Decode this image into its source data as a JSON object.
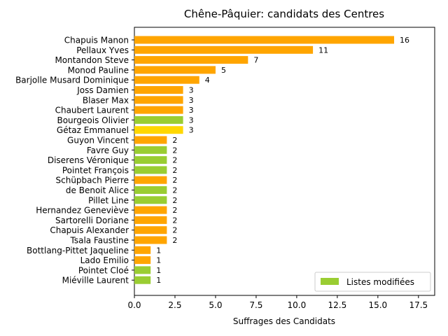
{
  "chart_data": {
    "type": "bar",
    "orientation": "horizontal",
    "title": "Chêne-Pâquier: candidats des Centres",
    "xlabel": "Suffrages des Candidats",
    "ylabel": "",
    "xlim": [
      0,
      18.5
    ],
    "xticks": [
      "0.0",
      "2.5",
      "5.0",
      "7.5",
      "10.0",
      "12.5",
      "15.0",
      "17.5"
    ],
    "grid": false,
    "legend": {
      "position": "bottom-right",
      "entries": [
        {
          "label": "Listes modifiées",
          "color": "#9acd32"
        }
      ]
    },
    "colors": {
      "orange": "#ffa500",
      "green": "#9acd32",
      "gold": "#ffd700"
    },
    "categories": [
      "Chapuis Manon",
      "Pellaux Yves",
      "Montandon Steve",
      "Monod Pauline",
      "Barjolle Musard Dominique",
      "Joss Damien",
      "Blaser Max",
      "Chaubert Laurent",
      "Bourgeois Olivier",
      "Gétaz Emmanuel",
      "Guyon Vincent",
      "Favre Guy",
      "Diserens Véronique",
      "Pointet François",
      "Schüpbach Pierre",
      "de Benoit Alice",
      "Pillet Line",
      "Hernandez Geneviève",
      "Sartorelli Doriane",
      "Chapuis Alexander",
      "Tsala Faustine",
      "Bottlang-Pittet Jaqueline",
      "Lado Emilio",
      "Pointet Cloé",
      "Miéville Laurent"
    ],
    "values": [
      16,
      11,
      7,
      5,
      4,
      3,
      3,
      3,
      3,
      3,
      2,
      2,
      2,
      2,
      2,
      2,
      2,
      2,
      2,
      2,
      2,
      1,
      1,
      1,
      1
    ],
    "bar_colors": [
      "orange",
      "orange",
      "orange",
      "orange",
      "orange",
      "orange",
      "orange",
      "orange",
      "green",
      "gold",
      "orange",
      "green",
      "green",
      "green",
      "orange",
      "green",
      "green",
      "orange",
      "orange",
      "orange",
      "orange",
      "orange",
      "orange",
      "green",
      "green"
    ],
    "value_labels": [
      "16",
      "11",
      "7",
      "5",
      "4",
      "3",
      "3",
      "3",
      "3",
      "3",
      "2",
      "2",
      "2",
      "2",
      "2",
      "2",
      "2",
      "2",
      "2",
      "2",
      "2",
      "1",
      "1",
      "1",
      "1"
    ]
  }
}
